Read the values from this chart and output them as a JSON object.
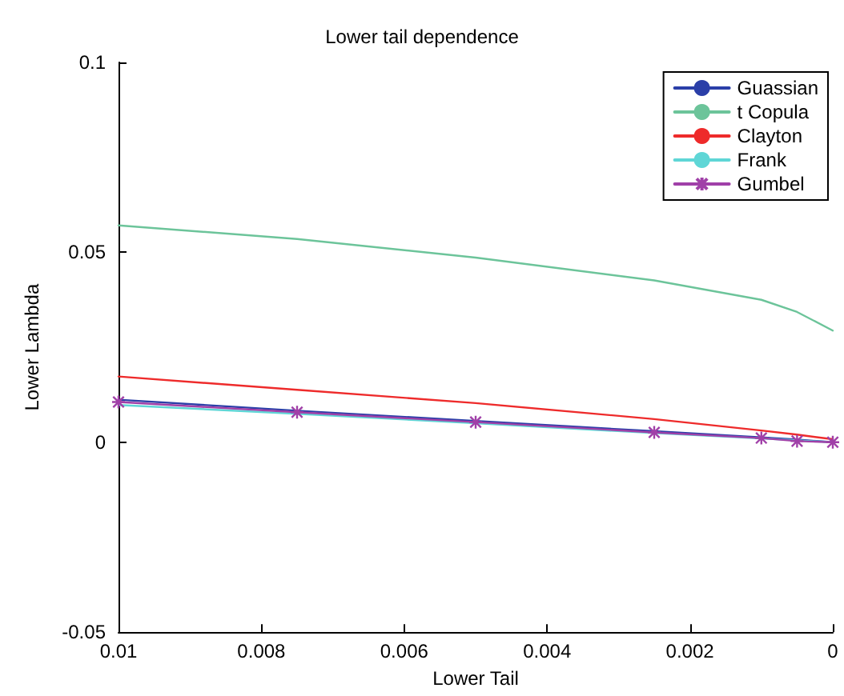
{
  "chart_data": {
    "type": "line",
    "title": "Lower tail dependence",
    "xlabel": "Lower Tail",
    "ylabel": "Lower Lambda",
    "x": [
      0.01,
      0.0075,
      0.005,
      0.0025,
      0.001,
      0.0005,
      0
    ],
    "xlim": [
      0.01,
      0
    ],
    "xticks": [
      0.01,
      0.008,
      0.006,
      0.004,
      0.002,
      0
    ],
    "ylim": [
      -0.05,
      0.1
    ],
    "yticks": [
      -0.05,
      0,
      0.05,
      0.1
    ],
    "grid": false,
    "legend": "top right",
    "marker": "none",
    "line_style": "solid",
    "series": [
      {
        "name": "Guassian",
        "color": "#2b3fa8",
        "values": [
          0.0112,
          0.0083,
          0.0056,
          0.0029,
          0.0013,
          0.0007,
          0
        ]
      },
      {
        "name": "t Copula",
        "color": "#6cc49a",
        "values": [
          0.0571,
          0.0535,
          0.0486,
          0.0426,
          0.0375,
          0.0343,
          0.0294
        ]
      },
      {
        "name": "Clayton",
        "color": "#ee2b2b",
        "values": [
          0.0173,
          0.0138,
          0.0103,
          0.0061,
          0.0031,
          0.002,
          0.0008
        ]
      },
      {
        "name": "Frank",
        "color": "#5fd6d6",
        "values": [
          0.0098,
          0.0075,
          0.005,
          0.0024,
          0.001,
          0.0005,
          0
        ]
      },
      {
        "name": "Gumbel",
        "color": "#a040a8",
        "marker": "cross",
        "values": [
          0.0106,
          0.0079,
          0.0053,
          0.0026,
          0.0011,
          0.0003,
          0
        ]
      }
    ]
  }
}
